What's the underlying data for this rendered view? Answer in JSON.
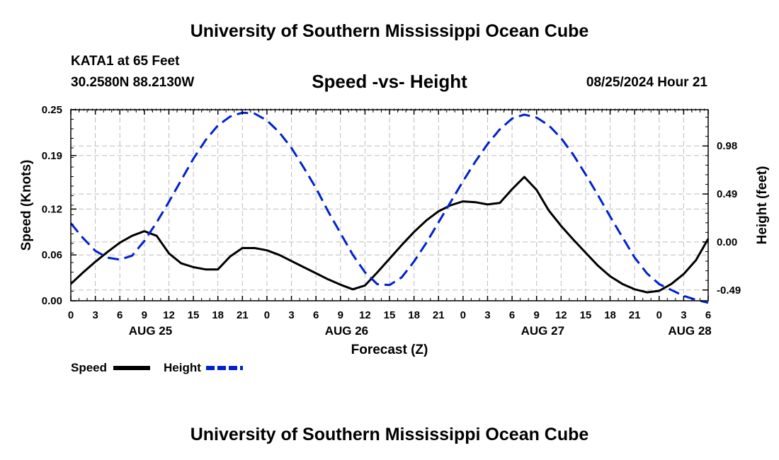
{
  "header": {
    "title": "University of Southern Mississippi Ocean Cube",
    "station": "KATA1 at 65 Feet",
    "coords": "30.2580N  88.2130W",
    "subtitle": "Speed -vs- Height",
    "timestamp": "08/25/2024 Hour 21"
  },
  "footer": {
    "title": "University of Southern Mississippi Ocean Cube"
  },
  "chart_data": {
    "type": "line",
    "title": "Speed -vs- Height",
    "xlabel": "Forecast (Z)",
    "ylabel": "Speed (Knots)",
    "ylabel_right": "Height (feet)",
    "x_hours_range": [
      0,
      78
    ],
    "ylim": [
      0,
      0.25
    ],
    "ylim_right": [
      -0.6,
      1.35
    ],
    "y_ticks": [
      "0.25",
      "0.19",
      "0.12",
      "0.06",
      "0.00"
    ],
    "y_tick_values": [
      0.25,
      0.19,
      0.12,
      0.06,
      0.0
    ],
    "y_right_ticks": [
      "0.98",
      "0.49",
      "0.00",
      "-0.49"
    ],
    "y_right_tick_values": [
      0.98,
      0.49,
      0.0,
      -0.49
    ],
    "x_tick_labels": [
      "0",
      "3",
      "6",
      "9",
      "12",
      "15",
      "18",
      "21",
      "0",
      "3",
      "6",
      "9",
      "12",
      "15",
      "18",
      "21",
      "0",
      "3",
      "6",
      "9",
      "12",
      "15",
      "18",
      "21",
      "0",
      "3",
      "6"
    ],
    "date_labels": [
      {
        "label": "AUG 25",
        "hour": 9.75
      },
      {
        "label": "AUG 26",
        "hour": 33.75
      },
      {
        "label": "AUG 27",
        "hour": 57.75
      },
      {
        "label": "AUG 28",
        "hour": 75.75
      }
    ],
    "grid": true,
    "legend_position": "bottom-left",
    "series": [
      {
        "name": "Speed",
        "axis": "left",
        "color": "#000000",
        "style": "solid",
        "x": [
          0,
          1.5,
          3,
          4.5,
          6,
          7.5,
          9,
          10.5,
          12,
          13.5,
          15,
          16.5,
          18,
          19.5,
          21,
          22.5,
          24,
          25.5,
          27,
          28.5,
          30,
          31.5,
          33,
          34.5,
          36,
          37.5,
          39,
          40.5,
          42,
          43.5,
          45,
          46.5,
          48,
          49.5,
          51,
          52.5,
          54,
          55.5,
          57,
          58.5,
          60,
          61.5,
          63,
          64.5,
          66,
          67.5,
          69,
          70.5,
          72,
          73.5,
          75,
          76.5,
          78
        ],
        "values": [
          0.022,
          0.037,
          0.051,
          0.064,
          0.076,
          0.085,
          0.091,
          0.085,
          0.062,
          0.049,
          0.044,
          0.041,
          0.041,
          0.058,
          0.069,
          0.069,
          0.066,
          0.06,
          0.052,
          0.044,
          0.036,
          0.028,
          0.021,
          0.015,
          0.02,
          0.037,
          0.055,
          0.073,
          0.09,
          0.105,
          0.117,
          0.125,
          0.13,
          0.129,
          0.126,
          0.128,
          0.146,
          0.162,
          0.145,
          0.118,
          0.098,
          0.08,
          0.063,
          0.046,
          0.032,
          0.022,
          0.015,
          0.011,
          0.013,
          0.022,
          0.035,
          0.053,
          0.081
        ]
      },
      {
        "name": "Height",
        "axis": "right",
        "color": "#0022cc",
        "style": "dashed",
        "x": [
          0,
          1.5,
          3,
          4.5,
          6,
          7.5,
          9,
          10.5,
          12,
          13.5,
          15,
          16.5,
          18,
          19.5,
          21,
          22.5,
          24,
          25.5,
          27,
          28.5,
          30,
          31.5,
          33,
          34.5,
          36,
          37.5,
          39,
          40.5,
          42,
          43.5,
          45,
          46.5,
          48,
          49.5,
          51,
          52.5,
          54,
          55.5,
          57,
          58.5,
          60,
          61.5,
          63,
          64.5,
          66,
          67.5,
          69,
          70.5,
          72,
          73.5,
          75,
          76.5,
          78
        ],
        "values": [
          0.19,
          0.04,
          -0.09,
          -0.16,
          -0.18,
          -0.14,
          0.01,
          0.2,
          0.41,
          0.63,
          0.85,
          1.04,
          1.19,
          1.28,
          1.32,
          1.31,
          1.24,
          1.12,
          0.96,
          0.76,
          0.55,
          0.31,
          0.09,
          -0.13,
          -0.31,
          -0.43,
          -0.44,
          -0.36,
          -0.2,
          -0.01,
          0.2,
          0.41,
          0.62,
          0.82,
          1.0,
          1.15,
          1.26,
          1.3,
          1.27,
          1.19,
          1.06,
          0.89,
          0.69,
          0.48,
          0.26,
          0.05,
          -0.16,
          -0.32,
          -0.43,
          -0.49,
          -0.55,
          -0.59,
          -0.62
        ]
      }
    ]
  }
}
